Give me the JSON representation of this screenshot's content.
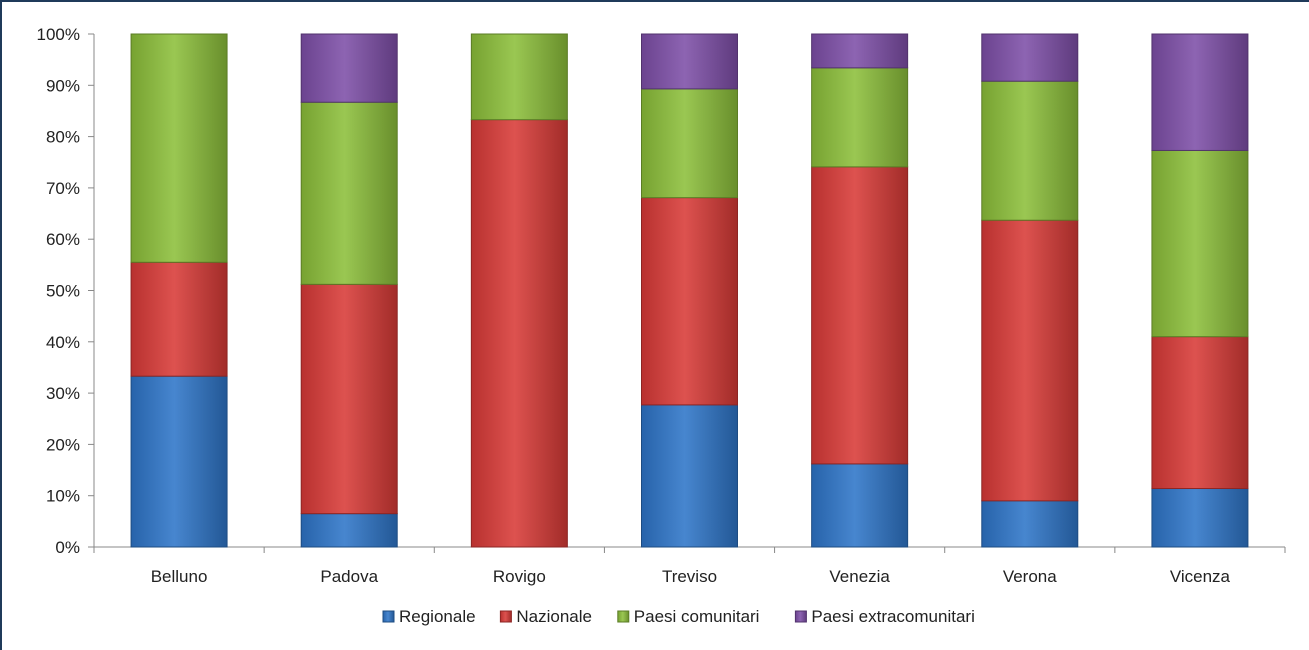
{
  "chart_data": {
    "type": "bar",
    "stacked": true,
    "percent_stacked": true,
    "categories": [
      "Belluno",
      "Padova",
      "Rovigo",
      "Treviso",
      "Venezia",
      "Verona",
      "Vicenza"
    ],
    "series": [
      {
        "name": "Regionale",
        "color": "#2e75c8",
        "values": [
          33.3,
          6.5,
          0.0,
          27.7,
          16.2,
          9.0,
          11.4
        ]
      },
      {
        "name": "Nazionale",
        "color": "#d83a37",
        "values": [
          22.2,
          44.7,
          83.3,
          40.4,
          57.9,
          54.7,
          29.6
        ]
      },
      {
        "name": "Paesi comunitari",
        "color": "#8cbf3a",
        "values": [
          44.5,
          35.5,
          16.7,
          21.2,
          19.3,
          27.1,
          36.3
        ]
      },
      {
        "name": "Paesi extracomunitari",
        "color": "#7e4fa8",
        "values": [
          0.0,
          13.3,
          0.0,
          10.7,
          6.6,
          9.2,
          22.7
        ]
      }
    ],
    "y_ticks": [
      "0%",
      "10%",
      "20%",
      "30%",
      "40%",
      "50%",
      "60%",
      "70%",
      "80%",
      "90%",
      "100%"
    ],
    "ylim": [
      0,
      100
    ],
    "grid": false,
    "legend_position": "bottom",
    "title": "",
    "xlabel": "",
    "ylabel": ""
  }
}
